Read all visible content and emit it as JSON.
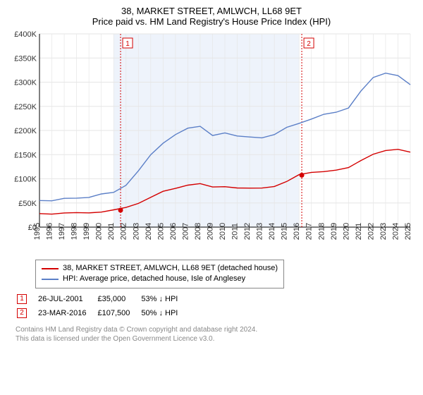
{
  "title_line1": "38, MARKET STREET, AMLWCH, LL68 9ET",
  "title_line2": "Price paid vs. HM Land Registry's House Price Index (HPI)",
  "chart": {
    "type": "line",
    "background_color": "#ffffff",
    "shaded_band": {
      "from_year": 2001,
      "to_year": 2016,
      "fill": "#eef3fb"
    },
    "y_axis": {
      "min": 0,
      "max": 400000,
      "tick_step": 50000,
      "tick_labels": [
        "£0",
        "£50K",
        "£100K",
        "£150K",
        "£200K",
        "£250K",
        "£300K",
        "£350K",
        "£400K"
      ],
      "label_fontsize": 11
    },
    "x_axis": {
      "years": [
        1995,
        1996,
        1997,
        1998,
        1999,
        2000,
        2001,
        2002,
        2003,
        2004,
        2005,
        2006,
        2007,
        2008,
        2009,
        2010,
        2011,
        2012,
        2013,
        2014,
        2015,
        2016,
        2017,
        2018,
        2019,
        2020,
        2021,
        2022,
        2023,
        2024,
        2025
      ],
      "label_fontsize": 11,
      "rotation": -90
    },
    "grid_color": "#e6e6e6",
    "series": [
      {
        "name": "subject_property",
        "label": "38, MARKET STREET, AMLWCH, LL68 9ET (detached house)",
        "color": "#d40000",
        "stroke_width": 1.4,
        "points": [
          [
            1995,
            28000
          ],
          [
            1996,
            28000
          ],
          [
            1997,
            29000
          ],
          [
            1998,
            29000
          ],
          [
            1999,
            30000
          ],
          [
            2000,
            32000
          ],
          [
            2001,
            35000
          ],
          [
            2002,
            40000
          ],
          [
            2003,
            50000
          ],
          [
            2004,
            62000
          ],
          [
            2005,
            73000
          ],
          [
            2006,
            80000
          ],
          [
            2007,
            88000
          ],
          [
            2008,
            90000
          ],
          [
            2009,
            82000
          ],
          [
            2010,
            84000
          ],
          [
            2011,
            82000
          ],
          [
            2012,
            80000
          ],
          [
            2013,
            80000
          ],
          [
            2014,
            85000
          ],
          [
            2015,
            95000
          ],
          [
            2016,
            107500
          ],
          [
            2017,
            113000
          ],
          [
            2018,
            116000
          ],
          [
            2019,
            118000
          ],
          [
            2020,
            122000
          ],
          [
            2021,
            138000
          ],
          [
            2022,
            152000
          ],
          [
            2023,
            158000
          ],
          [
            2024,
            160000
          ],
          [
            2025,
            156000
          ]
        ]
      },
      {
        "name": "hpi",
        "label": "HPI: Average price, detached house, Isle of Anglesey",
        "color": "#5b7fc7",
        "stroke_width": 1.4,
        "points": [
          [
            1995,
            55000
          ],
          [
            1996,
            56000
          ],
          [
            1997,
            58000
          ],
          [
            1998,
            60000
          ],
          [
            1999,
            63000
          ],
          [
            2000,
            67000
          ],
          [
            2001,
            72000
          ],
          [
            2002,
            88000
          ],
          [
            2003,
            115000
          ],
          [
            2004,
            150000
          ],
          [
            2005,
            175000
          ],
          [
            2006,
            190000
          ],
          [
            2007,
            205000
          ],
          [
            2008,
            210000
          ],
          [
            2009,
            188000
          ],
          [
            2010,
            195000
          ],
          [
            2011,
            190000
          ],
          [
            2012,
            185000
          ],
          [
            2013,
            185000
          ],
          [
            2014,
            193000
          ],
          [
            2015,
            205000
          ],
          [
            2016,
            215000
          ],
          [
            2017,
            225000
          ],
          [
            2018,
            232000
          ],
          [
            2019,
            238000
          ],
          [
            2020,
            248000
          ],
          [
            2021,
            280000
          ],
          [
            2022,
            310000
          ],
          [
            2023,
            320000
          ],
          [
            2024,
            312000
          ],
          [
            2025,
            295000
          ]
        ]
      }
    ],
    "event_markers": [
      {
        "n": "1",
        "year": 2001.56,
        "value": 35000,
        "line_color": "#d40000",
        "dash": "2,2"
      },
      {
        "n": "2",
        "year": 2016.22,
        "value": 107500,
        "line_color": "#d40000",
        "dash": "2,2"
      }
    ]
  },
  "legend": {
    "border_color": "#888888",
    "rows": [
      {
        "color": "#d40000",
        "label": "38, MARKET STREET, AMLWCH, LL68 9ET (detached house)"
      },
      {
        "color": "#5b7fc7",
        "label": "HPI: Average price, detached house, Isle of Anglesey"
      }
    ]
  },
  "transactions": [
    {
      "n": "1",
      "date": "26-JUL-2001",
      "price": "£35,000",
      "hpi_diff": "53% ↓ HPI",
      "marker_color": "#d40000"
    },
    {
      "n": "2",
      "date": "23-MAR-2016",
      "price": "£107,500",
      "hpi_diff": "50% ↓ HPI",
      "marker_color": "#d40000"
    }
  ],
  "footer_line1": "Contains HM Land Registry data © Crown copyright and database right 2024.",
  "footer_line2": "This data is licensed under the Open Government Licence v3.0."
}
